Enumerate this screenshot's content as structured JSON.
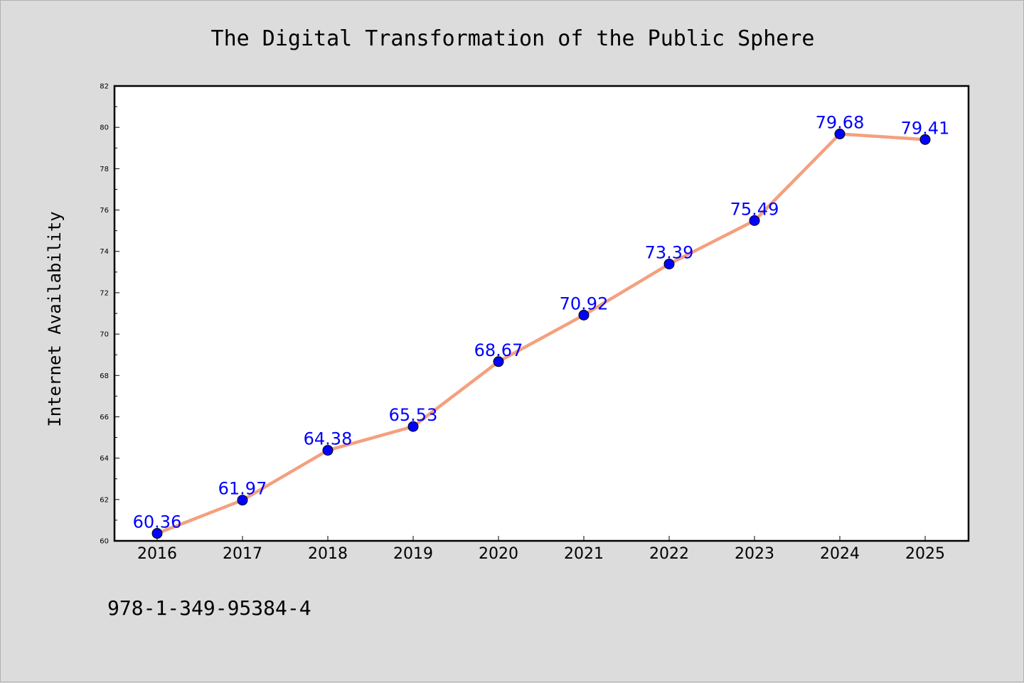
{
  "chart_data": {
    "type": "line",
    "title": "The Digital Transformation of the Public Sphere",
    "xlabel": "",
    "ylabel": "Internet Availability",
    "categories": [
      "2016",
      "2017",
      "2018",
      "2019",
      "2020",
      "2021",
      "2022",
      "2023",
      "2024",
      "2025"
    ],
    "series": [
      {
        "values": [
          60.36,
          61.97,
          64.38,
          65.53,
          68.67,
          70.92,
          73.39,
          75.49,
          79.68,
          79.41
        ],
        "labels": [
          "60.36",
          "61.97",
          "64.38",
          "65.53",
          "68.67",
          "70.92",
          "73.39",
          "75.49",
          "79.68",
          "79.41"
        ],
        "color": "#f4a07e",
        "marker_color": "#0000ff"
      }
    ],
    "ylim": [
      60,
      82
    ],
    "yticks": [
      "60",
      "62",
      "64",
      "66",
      "68",
      "70",
      "72",
      "74",
      "76",
      "78",
      "80",
      "82"
    ],
    "grid": false,
    "legend": "none"
  },
  "footer": {
    "isbn": "978-1-349-95384-4"
  },
  "colors": {
    "background": "#dcdcdc",
    "plot_background": "#ffffff",
    "line": "#f4a07e",
    "marker": "#0000ff",
    "label": "#0000ff"
  }
}
